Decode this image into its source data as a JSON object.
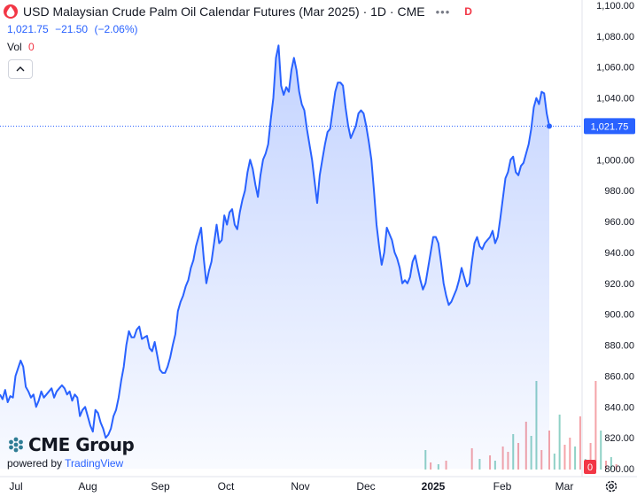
{
  "header": {
    "title": "USD Malaysian Crude Palm Oil Calendar Futures (Mar 2025) · 1D · CME",
    "more_icon": "ellipsis-icon",
    "badge": "D",
    "price": "1,021.75",
    "change": "−21.50",
    "change_pct": "(−2.06%)",
    "vol_label": "Vol",
    "vol_value": "0"
  },
  "watermark": {
    "name": "CME Group",
    "powered_by": "powered by",
    "provider": "TradingView"
  },
  "colors": {
    "line": "#2962ff",
    "up_volume": "#8fd1c6",
    "down_volume": "#f4a3a8",
    "last_price_bg": "#2962ff",
    "volume_badge_bg": "#f23645"
  },
  "chart_data": {
    "type": "area",
    "y_axis": {
      "min": 800,
      "max": 1100,
      "tick_labels": [
        "1,100.00",
        "1,080.00",
        "1,060.00",
        "1,040.00",
        "1,020.00",
        "1,000.00",
        "980.00",
        "960.00",
        "940.00",
        "920.00",
        "900.00",
        "880.00",
        "860.00",
        "840.00",
        "820.00",
        "800.00"
      ],
      "ticks": [
        1100,
        1080,
        1060,
        1040,
        1020,
        1000,
        980,
        960,
        940,
        920,
        900,
        880,
        860,
        840,
        820,
        800
      ]
    },
    "x_axis": {
      "tick_labels": [
        "Jul",
        "Aug",
        "Sep",
        "Oct",
        "Nov",
        "Dec",
        "2025",
        "Feb",
        "Mar"
      ],
      "bold": [
        "2025"
      ]
    },
    "last_price_label": "1,021.75",
    "last_price": 1021.75,
    "volume_badge": "0",
    "series": [
      {
        "values": [
          848,
          845,
          851,
          843,
          847,
          846,
          860,
          865,
          870,
          866,
          853,
          850,
          846,
          848,
          840,
          844,
          850,
          846,
          848,
          850,
          852,
          846,
          850,
          852,
          854,
          852,
          848,
          850,
          844,
          848,
          846,
          834,
          838,
          840,
          834,
          828,
          824,
          838,
          836,
          830,
          826,
          820,
          822,
          826,
          834,
          838,
          846,
          857,
          866,
          880,
          889,
          885,
          885,
          890,
          892,
          884,
          885,
          886,
          878,
          876,
          882,
          873,
          864,
          862,
          862,
          866,
          872,
          880,
          887,
          902,
          908,
          912,
          918,
          922,
          930,
          935,
          944,
          950,
          956,
          936,
          920,
          928,
          934,
          946,
          958,
          946,
          948,
          964,
          958,
          966,
          968,
          958,
          955,
          966,
          974,
          980,
          992,
          1000,
          994,
          984,
          976,
          990,
          1000,
          1004,
          1010,
          1026,
          1040,
          1066,
          1074,
          1048,
          1042,
          1047,
          1044,
          1058,
          1066,
          1058,
          1044,
          1036,
          1032,
          1020,
          1010,
          1000,
          986,
          972,
          990,
          1000,
          1010,
          1018,
          1020,
          1032,
          1044,
          1050,
          1050,
          1048,
          1034,
          1022,
          1014,
          1018,
          1022,
          1030,
          1032,
          1030,
          1022,
          1012,
          1000,
          980,
          958,
          944,
          932,
          940,
          956,
          952,
          948,
          940,
          936,
          930,
          920,
          922,
          920,
          924,
          934,
          938,
          930,
          922,
          916,
          920,
          930,
          940,
          950,
          950,
          946,
          934,
          920,
          912,
          906,
          908,
          912,
          916,
          922,
          930,
          924,
          918,
          920,
          934,
          946,
          950,
          944,
          942,
          946,
          948,
          950,
          954,
          946,
          950,
          962,
          975,
          988,
          992,
          1000,
          1002,
          992,
          990,
          996,
          998,
          1004,
          1010,
          1020,
          1034,
          1040,
          1036,
          1044,
          1043,
          1030,
          1021.75
        ]
      }
    ],
    "volume": [
      {
        "i": 165,
        "v": 22,
        "dir": "up"
      },
      {
        "i": 167,
        "v": 8,
        "dir": "down"
      },
      {
        "i": 170,
        "v": 6,
        "dir": "up"
      },
      {
        "i": 173,
        "v": 10,
        "dir": "down"
      },
      {
        "i": 183,
        "v": 24,
        "dir": "down"
      },
      {
        "i": 186,
        "v": 12,
        "dir": "up"
      },
      {
        "i": 190,
        "v": 16,
        "dir": "down"
      },
      {
        "i": 192,
        "v": 10,
        "dir": "up"
      },
      {
        "i": 195,
        "v": 26,
        "dir": "down"
      },
      {
        "i": 197,
        "v": 20,
        "dir": "down"
      },
      {
        "i": 199,
        "v": 40,
        "dir": "up"
      },
      {
        "i": 201,
        "v": 30,
        "dir": "down"
      },
      {
        "i": 204,
        "v": 54,
        "dir": "down"
      },
      {
        "i": 206,
        "v": 38,
        "dir": "up"
      },
      {
        "i": 208,
        "v": 100,
        "dir": "up"
      },
      {
        "i": 210,
        "v": 22,
        "dir": "down"
      },
      {
        "i": 213,
        "v": 44,
        "dir": "down"
      },
      {
        "i": 215,
        "v": 18,
        "dir": "up"
      },
      {
        "i": 217,
        "v": 62,
        "dir": "up"
      },
      {
        "i": 219,
        "v": 28,
        "dir": "down"
      },
      {
        "i": 221,
        "v": 36,
        "dir": "down"
      },
      {
        "i": 223,
        "v": 26,
        "dir": "up"
      },
      {
        "i": 225,
        "v": 60,
        "dir": "down"
      },
      {
        "i": 227,
        "v": 12,
        "dir": "up"
      },
      {
        "i": 229,
        "v": 30,
        "dir": "down"
      },
      {
        "i": 231,
        "v": 100,
        "dir": "down"
      },
      {
        "i": 233,
        "v": 44,
        "dir": "up"
      },
      {
        "i": 235,
        "v": 10,
        "dir": "down"
      },
      {
        "i": 237,
        "v": 14,
        "dir": "up"
      },
      {
        "i": 239,
        "v": 6,
        "dir": "down"
      }
    ]
  }
}
